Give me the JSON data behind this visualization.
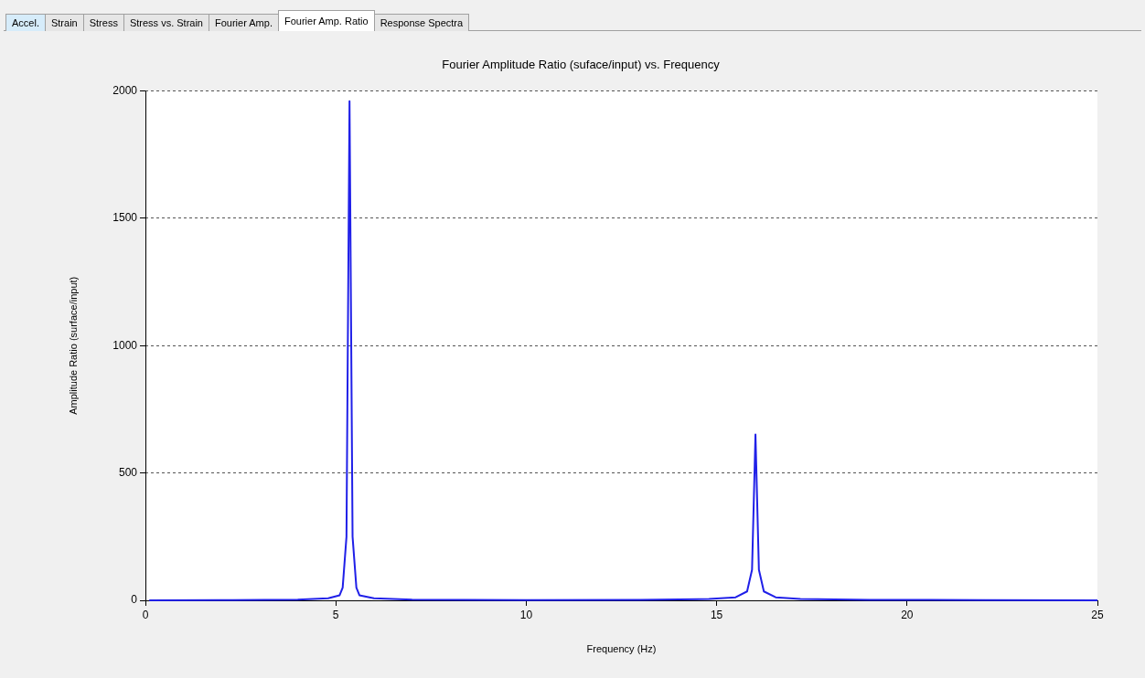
{
  "chart_data": {
    "type": "line",
    "title": "Fourier Amplitude Ratio (suface/input) vs. Frequency",
    "xlabel": "Frequency (Hz)",
    "ylabel": "Amplitude Ratio (surface/input)",
    "annotations": [
      "Accel.",
      "Strain",
      "Stress",
      "Stress vs. Strain",
      "Fourier Amp.",
      "Fourier Amp. Ratio",
      "Response Spectra"
    ],
    "series": [
      {
        "color": "#2020e8",
        "x": [
          0.1,
          2,
          4,
          4.8,
          5.1,
          5.18,
          5.28,
          5.36,
          5.44,
          5.54,
          5.62,
          6,
          7,
          10,
          13,
          14.8,
          15.5,
          15.8,
          15.93,
          16.02,
          16.11,
          16.24,
          16.55,
          17.2,
          19,
          22,
          25
        ],
        "values": [
          0,
          1,
          3,
          8,
          20,
          50,
          250,
          1960,
          250,
          50,
          20,
          8,
          3,
          1,
          2,
          5,
          12,
          35,
          120,
          651,
          120,
          35,
          12,
          5,
          2,
          1,
          0
        ]
      }
    ],
    "xlim": [
      0,
      25
    ],
    "xticks": [
      0,
      5,
      10,
      15,
      20,
      25
    ],
    "ylim": [
      0,
      2000
    ],
    "yticks": [
      0,
      500,
      1000,
      1500,
      2000
    ],
    "grid": "y",
    "marker": "none",
    "line_style": "solid"
  }
}
